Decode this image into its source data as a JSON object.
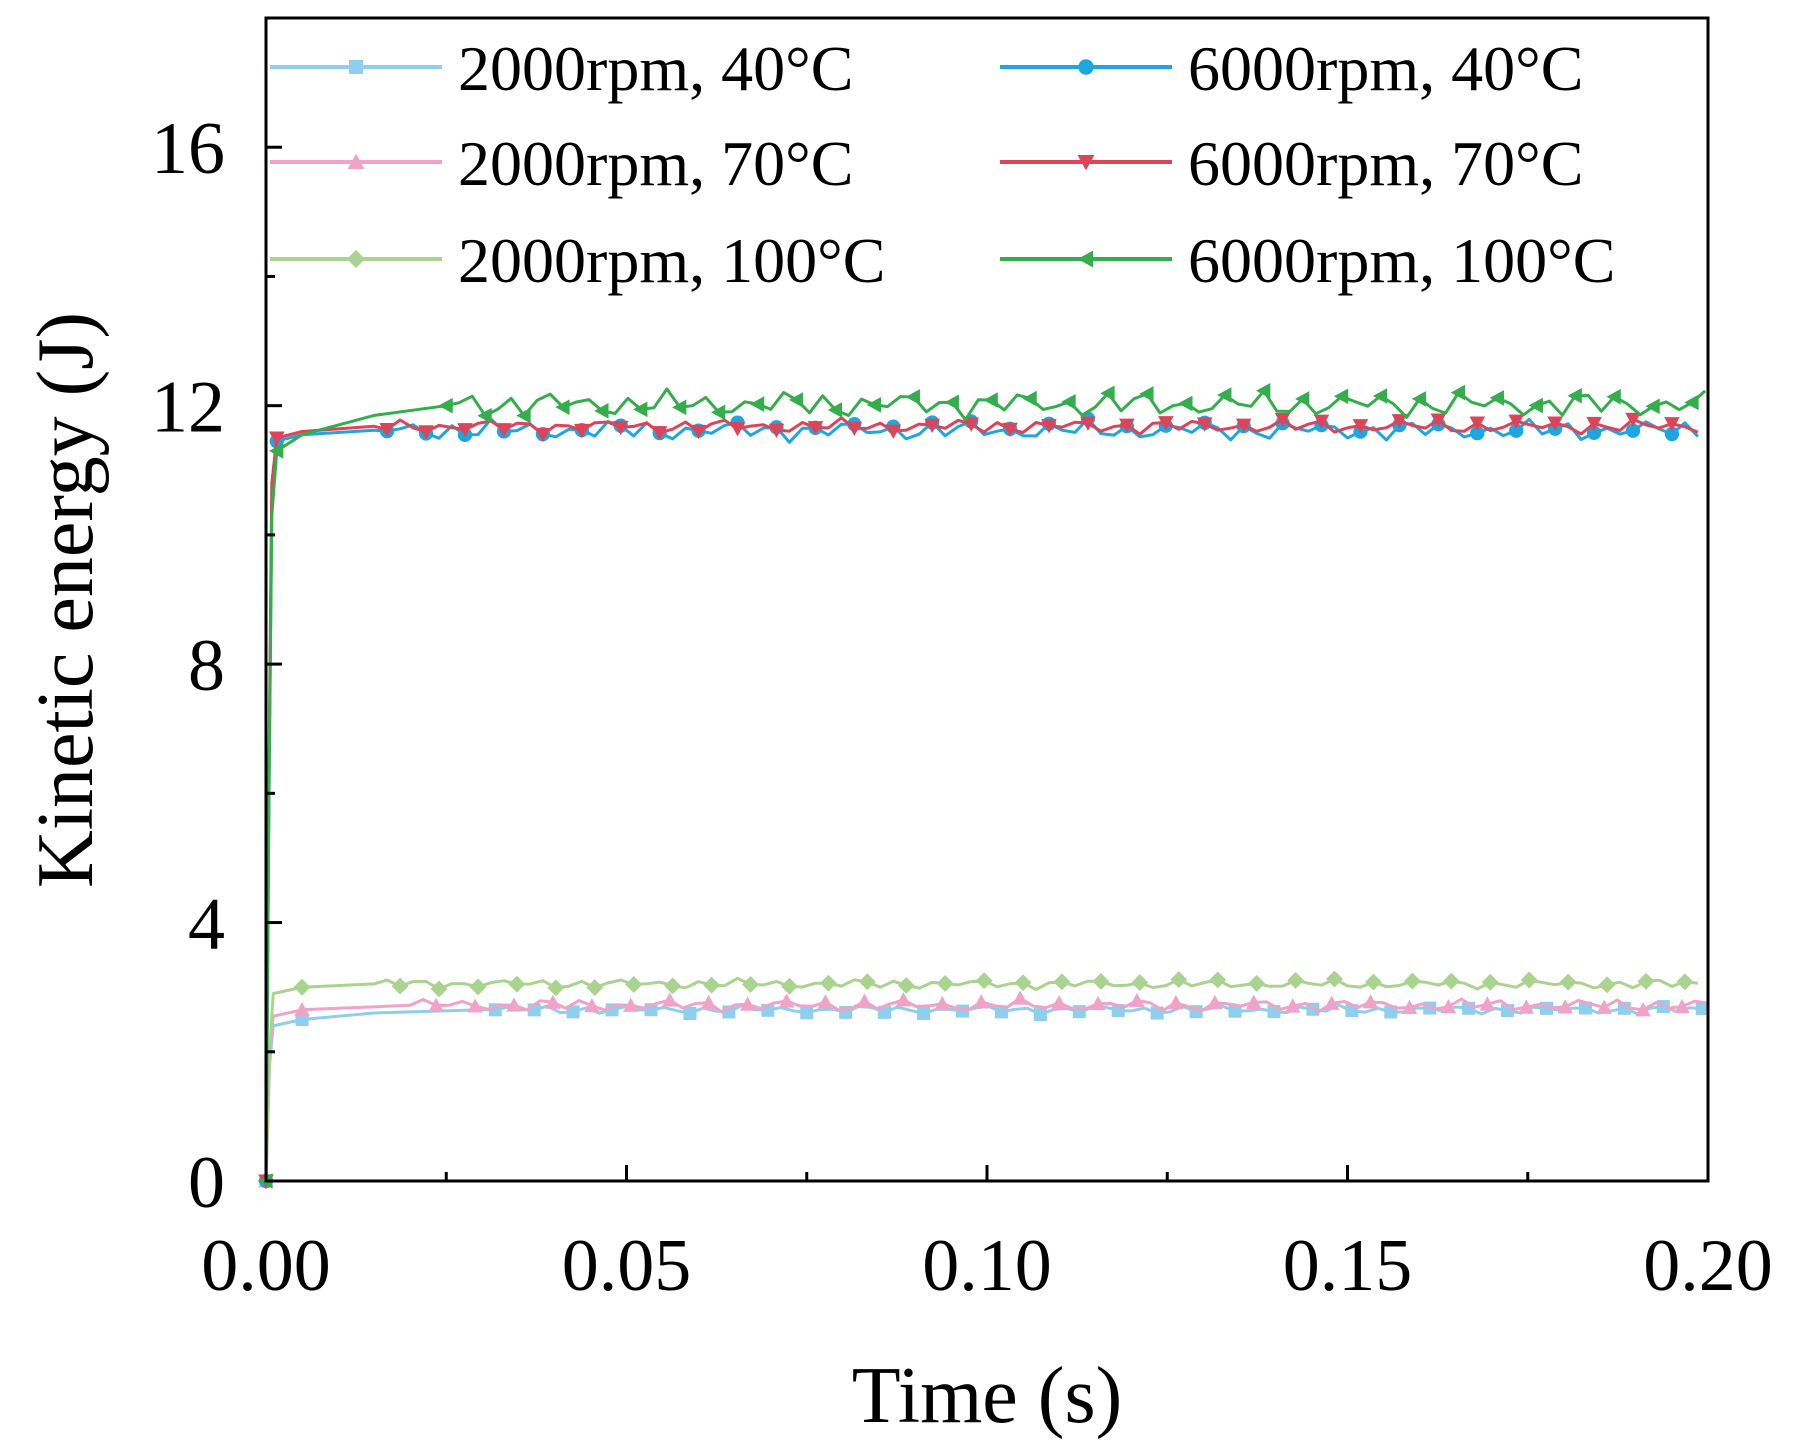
{
  "chart_data": {
    "type": "line",
    "title": "",
    "xlabel": "Time (s)",
    "ylabel": "Kinetic energy (J)",
    "xlim": [
      0,
      0.2
    ],
    "ylim": [
      0,
      18
    ],
    "x_ticks": [
      0.0,
      0.05,
      0.1,
      0.15,
      0.2
    ],
    "x_tick_labels": [
      "0.00",
      "0.05",
      "0.10",
      "0.15",
      "0.20"
    ],
    "y_ticks": [
      0,
      4,
      8,
      12,
      16
    ],
    "y_tick_labels": [
      "0",
      "4",
      "8",
      "12",
      "16"
    ],
    "legend_position": "top",
    "series": [
      {
        "name": "2000rpm, 40°C",
        "color": "#8ecfee",
        "marker": "square",
        "ramp": [
          [
            0,
            0
          ],
          [
            0.0005,
            1.8
          ],
          [
            0.001,
            2.4
          ],
          [
            0.005,
            2.5
          ],
          [
            0.015,
            2.6
          ],
          [
            0.03,
            2.65
          ]
        ],
        "plateau": 2.65,
        "amplitude": 0.07
      },
      {
        "name": "2000rpm, 70°C",
        "color": "#f0a3c6",
        "marker": "triangle-up",
        "ramp": [
          [
            0,
            0
          ],
          [
            0.0005,
            1.9
          ],
          [
            0.001,
            2.55
          ],
          [
            0.005,
            2.65
          ],
          [
            0.02,
            2.72
          ]
        ],
        "plateau": 2.72,
        "amplitude": 0.1
      },
      {
        "name": "2000rpm, 100°C",
        "color": "#a9d38f",
        "marker": "diamond",
        "ramp": [
          [
            0,
            0
          ],
          [
            0.0005,
            2.0
          ],
          [
            0.001,
            2.9
          ],
          [
            0.005,
            3.0
          ],
          [
            0.015,
            3.05
          ]
        ],
        "plateau": 3.05,
        "amplitude": 0.08
      },
      {
        "name": "6000rpm, 40°C",
        "color": "#1ea6e0",
        "marker": "circle",
        "ramp": [
          [
            0,
            0
          ],
          [
            0.0004,
            6.0
          ],
          [
            0.0008,
            10.5
          ],
          [
            0.0015,
            11.45
          ],
          [
            0.005,
            11.55
          ],
          [
            0.015,
            11.62
          ]
        ],
        "plateau": 11.62,
        "amplitude": 0.17
      },
      {
        "name": "6000rpm, 70°C",
        "color": "#dd4458",
        "marker": "triangle-down",
        "ramp": [
          [
            0,
            0
          ],
          [
            0.0004,
            6.2
          ],
          [
            0.0008,
            10.8
          ],
          [
            0.0015,
            11.5
          ],
          [
            0.005,
            11.6
          ],
          [
            0.015,
            11.68
          ]
        ],
        "plateau": 11.68,
        "amplitude": 0.12
      },
      {
        "name": "6000rpm, 100°C",
        "color": "#34ad4c",
        "marker": "triangle-left",
        "ramp": [
          [
            0,
            0
          ],
          [
            0.0004,
            5.8
          ],
          [
            0.0008,
            10.3
          ],
          [
            0.0015,
            11.3
          ],
          [
            0.005,
            11.55
          ],
          [
            0.015,
            11.85
          ],
          [
            0.025,
            12.0
          ]
        ],
        "plateau": 12.02,
        "amplitude": 0.22
      }
    ]
  }
}
